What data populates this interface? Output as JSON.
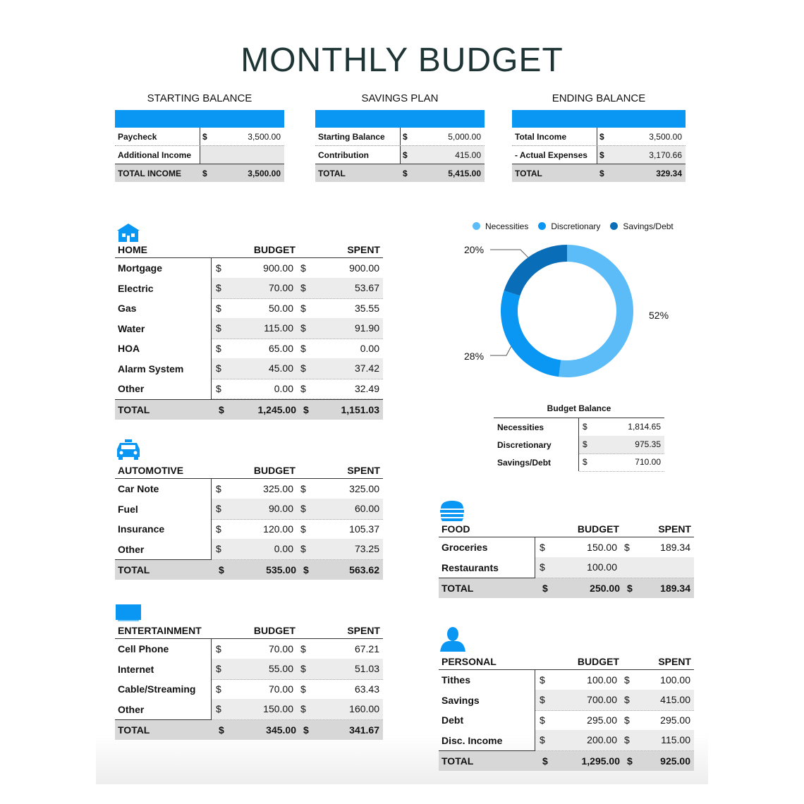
{
  "title": "MONTHLY BUDGET",
  "summary": {
    "starting": {
      "title": "STARTING BALANCE",
      "rows": [
        {
          "label": "Paycheck",
          "currency": "$",
          "value": "3,500.00"
        },
        {
          "label": "Additional Income",
          "currency": "",
          "value": ""
        }
      ],
      "total": {
        "label": "TOTAL INCOME",
        "currency": "$",
        "value": "3,500.00"
      }
    },
    "savings": {
      "title": "SAVINGS PLAN",
      "rows": [
        {
          "label": "Starting Balance",
          "currency": "$",
          "value": "5,000.00"
        },
        {
          "label": "Contribution",
          "currency": "$",
          "value": "415.00"
        }
      ],
      "total": {
        "label": "TOTAL",
        "currency": "$",
        "value": "5,415.00"
      }
    },
    "ending": {
      "title": "ENDING BALANCE",
      "rows": [
        {
          "label": "Total Income",
          "currency": "$",
          "value": "3,500.00"
        },
        {
          "label": "- Actual Expenses",
          "currency": "$",
          "value": "3,170.66"
        }
      ],
      "total": {
        "label": "TOTAL",
        "currency": "$",
        "value": "329.34"
      }
    }
  },
  "columns": {
    "budget": "BUDGET",
    "spent": "SPENT",
    "currency": "$"
  },
  "home": {
    "title": "HOME",
    "icon": "house-icon",
    "rows": [
      {
        "name": "Mortgage",
        "budget": "900.00",
        "spent": "900.00"
      },
      {
        "name": "Electric",
        "budget": "70.00",
        "spent": "53.67"
      },
      {
        "name": "Gas",
        "budget": "50.00",
        "spent": "35.55"
      },
      {
        "name": "Water",
        "budget": "115.00",
        "spent": "91.90"
      },
      {
        "name": "HOA",
        "budget": "65.00",
        "spent": "0.00"
      },
      {
        "name": "Alarm System",
        "budget": "45.00",
        "spent": "37.42"
      },
      {
        "name": "Other",
        "budget": "0.00",
        "spent": "32.49"
      }
    ],
    "total": {
      "name": "TOTAL",
      "budget": "1,245.00",
      "spent": "1,151.03"
    }
  },
  "automotive": {
    "title": "AUTOMOTIVE",
    "icon": "car-icon",
    "rows": [
      {
        "name": "Car Note",
        "budget": "325.00",
        "spent": "325.00"
      },
      {
        "name": "Fuel",
        "budget": "90.00",
        "spent": "60.00"
      },
      {
        "name": "Insurance",
        "budget": "120.00",
        "spent": "105.37"
      },
      {
        "name": "Other",
        "budget": "0.00",
        "spent": "73.25"
      }
    ],
    "total": {
      "name": "TOTAL",
      "budget": "535.00",
      "spent": "563.62"
    }
  },
  "entertainment": {
    "title": "ENTERTAINMENT",
    "icon": "tv-icon",
    "rows": [
      {
        "name": "Cell Phone",
        "budget": "70.00",
        "spent": "67.21"
      },
      {
        "name": "Internet",
        "budget": "55.00",
        "spent": "51.03"
      },
      {
        "name": "Cable/Streaming",
        "budget": "70.00",
        "spent": "63.43"
      },
      {
        "name": "Other",
        "budget": "150.00",
        "spent": "160.00"
      }
    ],
    "total": {
      "name": "TOTAL",
      "budget": "345.00",
      "spent": "341.67"
    }
  },
  "food": {
    "title": "FOOD",
    "icon": "burger-icon",
    "rows": [
      {
        "name": "Groceries",
        "budget": "150.00",
        "spent": "189.34"
      },
      {
        "name": "Restaurants",
        "budget": "100.00",
        "spent": ""
      }
    ],
    "total": {
      "name": "TOTAL",
      "budget": "250.00",
      "spent": "189.34"
    }
  },
  "personal": {
    "title": "PERSONAL",
    "icon": "person-icon",
    "rows": [
      {
        "name": "Tithes",
        "budget": "100.00",
        "spent": "100.00"
      },
      {
        "name": "Savings",
        "budget": "700.00",
        "spent": "415.00"
      },
      {
        "name": "Debt",
        "budget": "295.00",
        "spent": "295.00"
      },
      {
        "name": "Disc. Income",
        "budget": "200.00",
        "spent": "115.00"
      }
    ],
    "total": {
      "name": "TOTAL",
      "budget": "1,295.00",
      "spent": "925.00"
    }
  },
  "budget_balance": {
    "title": "Budget Balance",
    "rows": [
      {
        "label": "Necessities",
        "currency": "$",
        "value": "1,814.65"
      },
      {
        "label": "Discretionary",
        "currency": "$",
        "value": "975.35"
      },
      {
        "label": "Savings/Debt",
        "currency": "$",
        "value": "710.00"
      }
    ]
  },
  "colors": {
    "accent": "#0a96f3",
    "necessities": "#5bbcf7",
    "discretionary": "#0a96f3",
    "savings_debt": "#0a6db8"
  },
  "chart_data": {
    "type": "pie",
    "categories": [
      "Necessities",
      "Discretionary",
      "Savings/Debt"
    ],
    "values": [
      52,
      28,
      20
    ],
    "labels": [
      "52%",
      "28%",
      "20%"
    ],
    "legend": "top"
  }
}
